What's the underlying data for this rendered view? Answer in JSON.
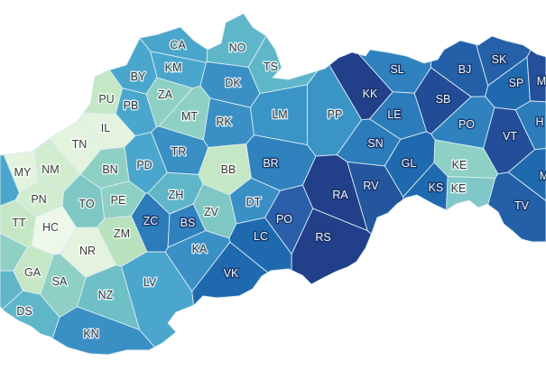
{
  "map": {
    "districts": [
      {
        "code": "CA",
        "fill": "#4aa6cc"
      },
      {
        "code": "NO",
        "fill": "#5fb6c9"
      },
      {
        "code": "TS",
        "fill": "#5fb6c9"
      },
      {
        "code": "KM",
        "fill": "#4aa6cc"
      },
      {
        "code": "BY",
        "fill": "#4aa6cc"
      },
      {
        "code": "ZA",
        "fill": "#8fd0c4"
      },
      {
        "code": "PU",
        "fill": "#c6e7c5"
      },
      {
        "code": "PB",
        "fill": "#4aa6cc"
      },
      {
        "code": "DK",
        "fill": "#3a8fc5"
      },
      {
        "code": "MT",
        "fill": "#8fd0c4"
      },
      {
        "code": "IL",
        "fill": "#e3f3de"
      },
      {
        "code": "RK",
        "fill": "#3a8fc5"
      },
      {
        "code": "LM",
        "fill": "#3a94c6"
      },
      {
        "code": "PP",
        "fill": "#3a94c6"
      },
      {
        "code": "KK",
        "fill": "#223f8a"
      },
      {
        "code": "SL",
        "fill": "#2f82be"
      },
      {
        "code": "BJ",
        "fill": "#2460a8"
      },
      {
        "code": "SK",
        "fill": "#2560a8"
      },
      {
        "code": "SP",
        "fill": "#1f6aae"
      },
      {
        "code": "M",
        "fill": "#244f9a"
      },
      {
        "code": "SB",
        "fill": "#234c96"
      },
      {
        "code": "LE",
        "fill": "#2c7bba"
      },
      {
        "code": "PO",
        "fill": "#2f82be"
      },
      {
        "code": "H",
        "fill": "#2c7bba"
      },
      {
        "code": "VT",
        "fill": "#234f9a"
      },
      {
        "code": "TN",
        "fill": "#e3f3de"
      },
      {
        "code": "TR",
        "fill": "#3a8fc5"
      },
      {
        "code": "BB",
        "fill": "#c6e7c5"
      },
      {
        "code": "BR",
        "fill": "#2f82be"
      },
      {
        "code": "SN",
        "fill": "#2c7bba"
      },
      {
        "code": "GL",
        "fill": "#1f6aae"
      },
      {
        "code": "KE",
        "fill": "#8fd0c4"
      },
      {
        "code": "KE",
        "fill": "#7fc7c8"
      },
      {
        "code": "KS",
        "fill": "#1f6aae"
      },
      {
        "code": "RV",
        "fill": "#24569e"
      },
      {
        "code": "RA",
        "fill": "#223f8a"
      },
      {
        "code": "PD",
        "fill": "#4aa6cc"
      },
      {
        "code": "BN",
        "fill": "#8fd0c4"
      },
      {
        "code": "NM",
        "fill": "#d2ecd0"
      },
      {
        "code": "MY",
        "fill": "#e3f3de"
      },
      {
        "code": "ZH",
        "fill": "#5fb6c9"
      },
      {
        "code": "PE",
        "fill": "#8fd0c4"
      },
      {
        "code": "TO",
        "fill": "#7fc7c4"
      },
      {
        "code": "PN",
        "fill": "#d2ecd0"
      },
      {
        "code": "DT",
        "fill": "#3a8fc5"
      },
      {
        "code": "ZV",
        "fill": "#7fc7c4"
      },
      {
        "code": "ZC",
        "fill": "#2c7bba"
      },
      {
        "code": "BS",
        "fill": "#2f82be"
      },
      {
        "code": "TT",
        "fill": "#c6e7c5"
      },
      {
        "code": "HC",
        "fill": "#eef8ea"
      },
      {
        "code": "ZM",
        "fill": "#b8e1bd"
      },
      {
        "code": "LC",
        "fill": "#1f6aae"
      },
      {
        "code": "PO",
        "fill": "#2a5ea8"
      },
      {
        "code": "RS",
        "fill": "#223f8a"
      },
      {
        "code": "TV",
        "fill": "#2460a8"
      },
      {
        "code": "M",
        "fill": "#1f6aae"
      },
      {
        "code": "NR",
        "fill": "#e3f3de"
      },
      {
        "code": "KA",
        "fill": "#3a8fc5"
      },
      {
        "code": "VK",
        "fill": "#1f6aae"
      },
      {
        "code": "GA",
        "fill": "#c6e7c5"
      },
      {
        "code": "SA",
        "fill": "#8fd0c4"
      },
      {
        "code": "LV",
        "fill": "#4aa6cc"
      },
      {
        "code": "NZ",
        "fill": "#6fc0c6"
      },
      {
        "code": "DS",
        "fill": "#5fb6c9"
      },
      {
        "code": "KN",
        "fill": "#3a8fc5"
      },
      {
        "code": "",
        "fill": "#4aa6cc"
      },
      {
        "code": "",
        "fill": "#8fd0c4"
      },
      {
        "code": "",
        "fill": "#5fb6c9"
      }
    ]
  }
}
